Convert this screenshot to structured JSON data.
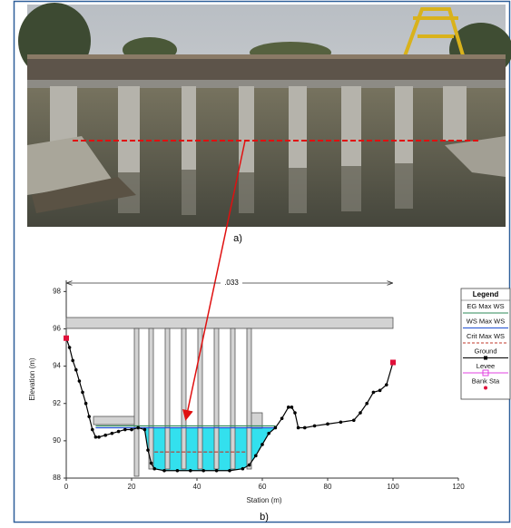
{
  "figure": {
    "label_a": "a)",
    "label_b": "b)"
  },
  "chart_data": {
    "type": "line",
    "xlabel": "Station (m)",
    "ylabel": "Elevation (m)",
    "annotation": ".033",
    "xlim": [
      0,
      120
    ],
    "xticks": [
      0,
      20,
      40,
      60,
      80,
      100,
      120
    ],
    "ylim": [
      88,
      98.6
    ],
    "yticks": [
      88,
      90,
      92,
      94,
      96,
      98
    ],
    "legend_title": "Legend",
    "series": [
      {
        "name": "EG Max WS",
        "color": "#2e8b57",
        "style": "solid",
        "x": [
          9,
          64
        ],
        "values": [
          90.8,
          90.8
        ]
      },
      {
        "name": "WS Max WS",
        "color": "#1f4fd1",
        "style": "solid",
        "x": [
          9,
          64
        ],
        "values": [
          90.7,
          90.7
        ]
      },
      {
        "name": "Crit Max WS",
        "color": "#c0392b",
        "style": "dashed",
        "x": [
          27,
          55
        ],
        "values": [
          89.4,
          89.4
        ]
      },
      {
        "name": "Ground",
        "color": "#000000",
        "style": "markers",
        "x": [
          0,
          1,
          2,
          3,
          4,
          5,
          6,
          7,
          8,
          9,
          10,
          12,
          14,
          16,
          18,
          20,
          22,
          24,
          25,
          26,
          27,
          30,
          34,
          38,
          42,
          46,
          50,
          54,
          56,
          58,
          60,
          62,
          64,
          66,
          68,
          69,
          70,
          71,
          73,
          76,
          80,
          84,
          88,
          90,
          92,
          94,
          96,
          98,
          100
        ],
        "values": [
          95.5,
          95,
          94.3,
          93.8,
          93.2,
          92.6,
          92,
          91.3,
          90.6,
          90.2,
          90.2,
          90.3,
          90.4,
          90.5,
          90.6,
          90.6,
          90.7,
          90.6,
          89.5,
          88.8,
          88.5,
          88.4,
          88.4,
          88.4,
          88.4,
          88.4,
          88.4,
          88.5,
          88.7,
          89.2,
          89.8,
          90.4,
          90.7,
          91.2,
          91.8,
          91.8,
          91.5,
          90.7,
          90.7,
          90.8,
          90.9,
          91,
          91.1,
          91.5,
          92,
          92.6,
          92.7,
          93,
          94.2
        ]
      },
      {
        "name": "Levee",
        "color": "#e040e0",
        "style": "solid",
        "x": [],
        "values": []
      },
      {
        "name": "Bank Sta",
        "color": "#e0103a",
        "style": "points",
        "x": [
          0,
          100
        ],
        "values": [
          95.5,
          94.2
        ]
      }
    ]
  }
}
